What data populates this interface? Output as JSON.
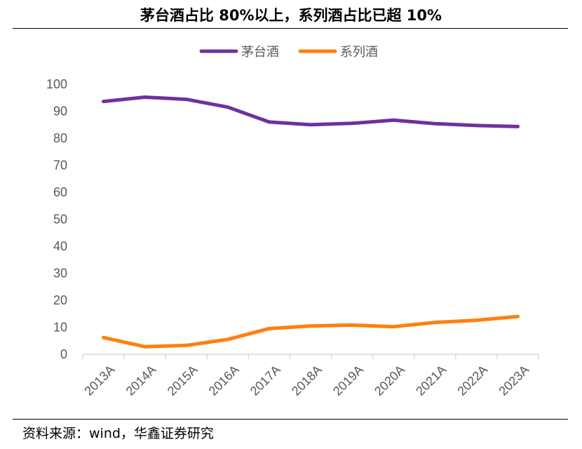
{
  "title": "茅台酒占比 80%以上，系列酒占比已超 10%",
  "source": "资料来源：wind，华鑫证券研究",
  "colors": {
    "maotai": "#7030A0",
    "series": "#FF7F0E",
    "axis": "#D9D9D9",
    "tick": "#595959"
  },
  "chart_data": {
    "type": "line",
    "categories": [
      "2013A",
      "2014A",
      "2015A",
      "2016A",
      "2017A",
      "2018A",
      "2019A",
      "2020A",
      "2021A",
      "2022A",
      "2023A"
    ],
    "series": [
      {
        "name": "茅台酒",
        "values": [
          93.6,
          95.2,
          94.4,
          91.5,
          86.0,
          85.0,
          85.5,
          86.7,
          85.4,
          84.7,
          84.3
        ]
      },
      {
        "name": "系列酒",
        "values": [
          6.2,
          2.8,
          3.3,
          5.5,
          9.5,
          10.5,
          10.8,
          10.2,
          11.8,
          12.6,
          14.0
        ]
      }
    ],
    "yticks": [
      0,
      10,
      20,
      30,
      40,
      50,
      60,
      70,
      80,
      90,
      100
    ],
    "ylim": [
      0,
      100
    ],
    "grid": false,
    "legend_position": "top-center"
  }
}
